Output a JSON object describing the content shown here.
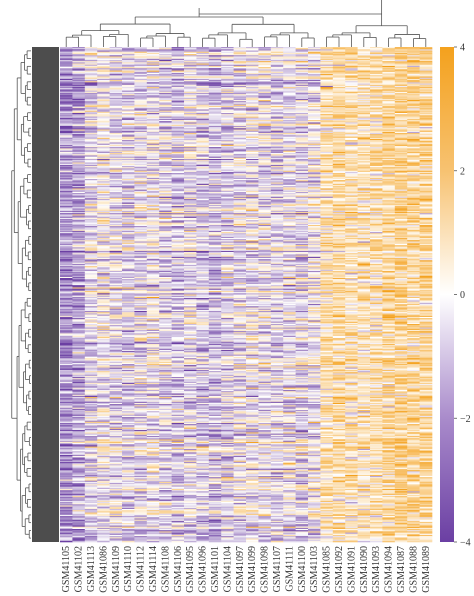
{
  "chart_data": {
    "type": "heatmap",
    "title": "",
    "xlabel": "",
    "ylabel": "",
    "columns": [
      "GSM41105",
      "GSM41102",
      "GSM41113",
      "GSM41086",
      "GSM41109",
      "GSM41110",
      "GSM41112",
      "GSM41114",
      "GSM41108",
      "GSM41106",
      "GSM41095",
      "GSM41096",
      "GSM41101",
      "GSM41104",
      "GSM41097",
      "GSM41099",
      "GSM41098",
      "GSM41107",
      "GSM41111",
      "GSM41100",
      "GSM41103",
      "GSM41085",
      "GSM41092",
      "GSM41091",
      "GSM41090",
      "GSM41093",
      "GSM41094",
      "GSM41087",
      "GSM41088",
      "GSM41089"
    ],
    "column_mean_z": [
      -2.0,
      -1.6,
      -0.6,
      -0.2,
      -0.5,
      -0.6,
      -0.5,
      -0.3,
      -0.6,
      -0.9,
      -0.5,
      -0.8,
      -1.1,
      -0.7,
      -0.5,
      -0.3,
      -0.4,
      -0.6,
      -0.5,
      -0.6,
      -0.3,
      1.0,
      1.4,
      1.0,
      0.9,
      1.1,
      1.5,
      1.7,
      1.5,
      1.6
    ],
    "row_count": 420,
    "row_annotation_color": "#4d4d4d",
    "colorbar": {
      "ticks": [
        "4",
        "2",
        "0",
        "−2",
        "−4"
      ],
      "range": [
        -4,
        4
      ],
      "colors": {
        "high": "#f4a11d",
        "mid": "#ffffff",
        "low": "#6b3fa3"
      }
    },
    "dendrograms": {
      "columns": true,
      "rows": true
    },
    "legend": "right"
  }
}
